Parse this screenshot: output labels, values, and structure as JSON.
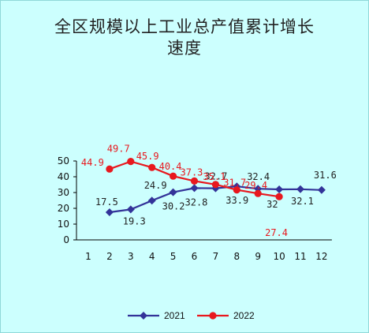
{
  "title_line1": "全区规模以上工业总产值累计增长",
  "title_line2": "速度",
  "colors": {
    "2021": "#333399",
    "2022": "#e8181e",
    "background": "#ccfffe"
  },
  "chart_data": {
    "type": "line",
    "x": [
      1,
      2,
      3,
      4,
      5,
      6,
      7,
      8,
      9,
      10,
      11,
      12
    ],
    "x_tick_labels": [
      "1",
      "2",
      "3",
      "4",
      "5",
      "6",
      "7",
      "8",
      "9",
      "10",
      "11",
      "12"
    ],
    "ylim": [
      0,
      50
    ],
    "y_ticks": [
      0,
      10,
      20,
      30,
      40,
      50
    ],
    "y_tick_labels": [
      "0",
      "10",
      "20",
      "30",
      "40",
      "50"
    ],
    "grid": false,
    "legend_position": "bottom",
    "series": [
      {
        "name": "2021",
        "marker": "diamond",
        "x": [
          2,
          3,
          4,
          5,
          6,
          7,
          8,
          9,
          10,
          11,
          12
        ],
        "values": [
          17.5,
          19.3,
          24.9,
          30.2,
          32.8,
          32.7,
          33.9,
          32.4,
          32,
          32.1,
          31.6
        ],
        "labels": [
          "17.5",
          "19.3",
          "24.9",
          "30.2",
          "32.8",
          "32.7",
          "33.9",
          "32.4",
          "32",
          "32.1",
          "31.6"
        ]
      },
      {
        "name": "2022",
        "marker": "circle",
        "x": [
          2,
          3,
          4,
          5,
          6,
          7,
          8,
          9,
          10
        ],
        "values": [
          44.9,
          49.7,
          45.9,
          40.4,
          37.3,
          35.1,
          31.7,
          29.4,
          27.4
        ],
        "labels": [
          "44.9",
          "49.7",
          "45.9",
          "40.4",
          "37.3",
          "35.1",
          "31.7",
          "29.4",
          "27.4"
        ]
      }
    ]
  }
}
